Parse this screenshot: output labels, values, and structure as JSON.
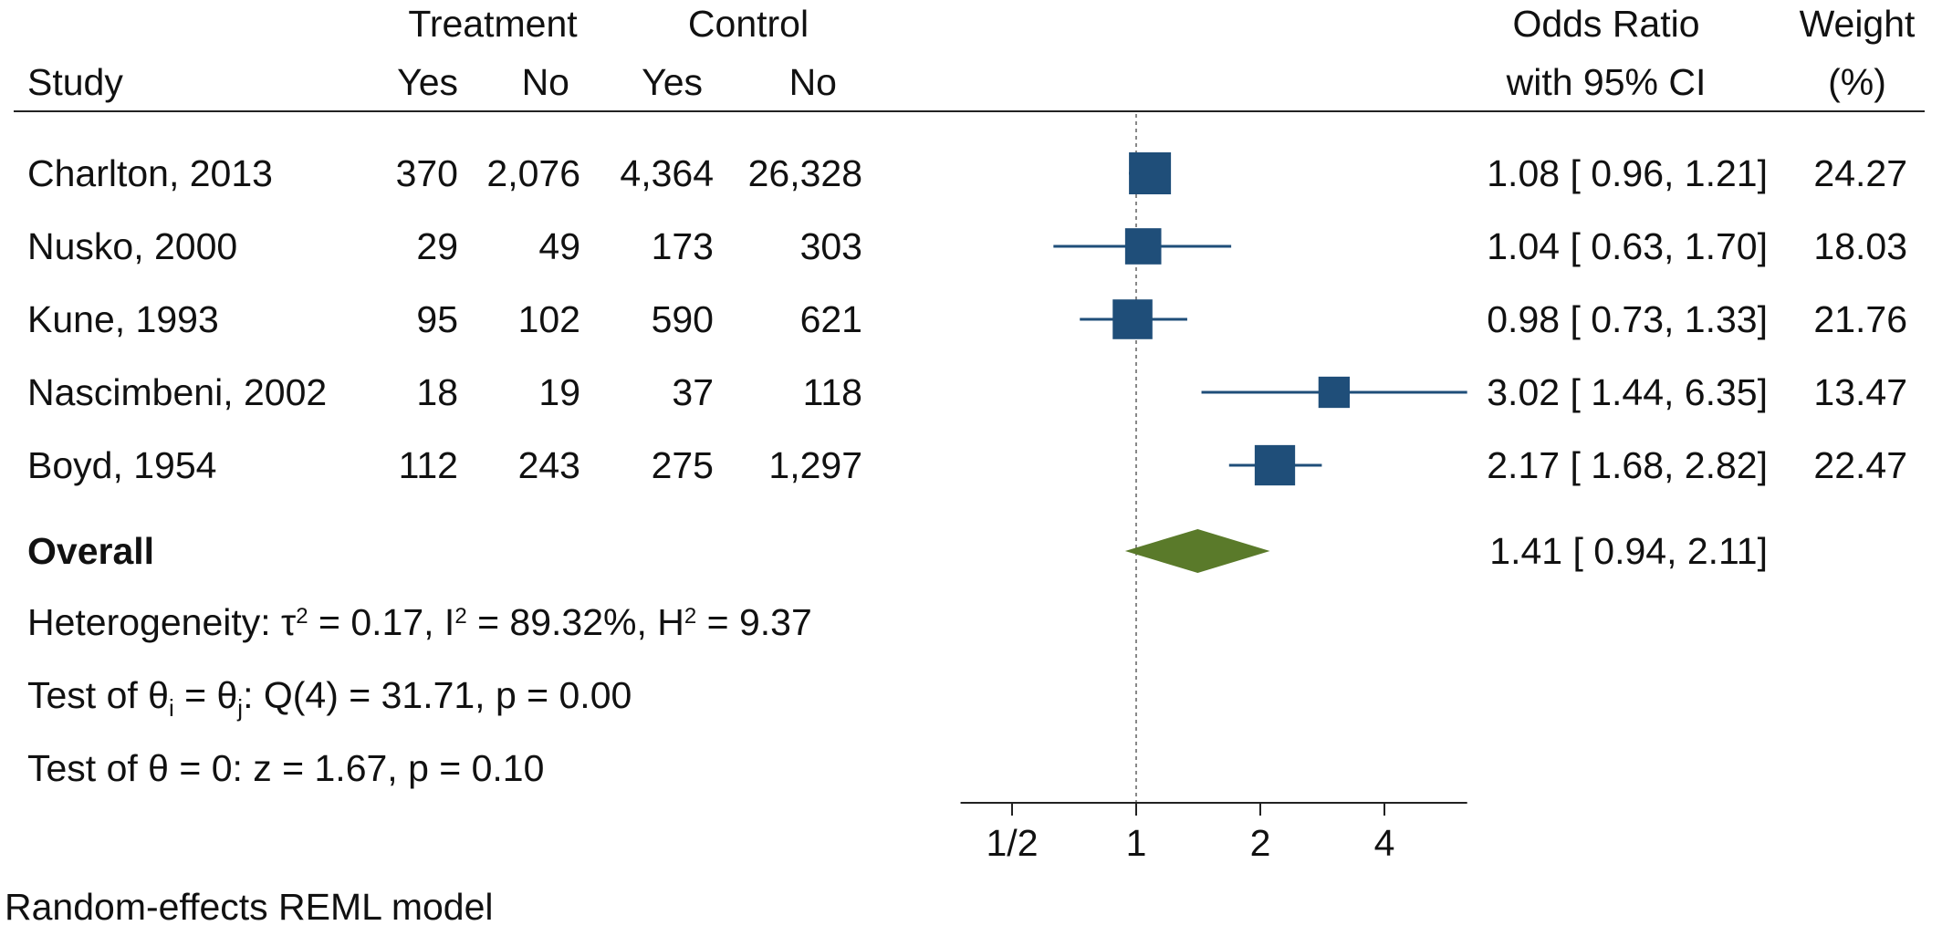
{
  "header": {
    "treatment": "Treatment",
    "control": "Control",
    "study": "Study",
    "yes": "Yes",
    "no": "No",
    "or_line1": "Odds Ratio",
    "or_line2": "with 95% CI",
    "weight_line1": "Weight",
    "weight_line2": "(%)"
  },
  "rows": [
    {
      "study": "Charlton, 2013",
      "t_yes": "370",
      "t_no": "2,076",
      "c_yes": "4,364",
      "c_no": "26,328",
      "ci": "1.08 [ 0.96,  1.21]",
      "weight": "24.27"
    },
    {
      "study": "Nusko, 2000",
      "t_yes": "29",
      "t_no": "49",
      "c_yes": "173",
      "c_no": "303",
      "ci": "1.04 [ 0.63,  1.70]",
      "weight": "18.03"
    },
    {
      "study": "Kune, 1993",
      "t_yes": "95",
      "t_no": "102",
      "c_yes": "590",
      "c_no": "621",
      "ci": "0.98 [ 0.73,  1.33]",
      "weight": "21.76"
    },
    {
      "study": "Nascimbeni, 2002",
      "t_yes": "18",
      "t_no": "19",
      "c_yes": "37",
      "c_no": "118",
      "ci": "3.02 [ 1.44,  6.35]",
      "weight": "13.47"
    },
    {
      "study": "Boyd, 1954",
      "t_yes": "112",
      "t_no": "243",
      "c_yes": "275",
      "c_no": "1,297",
      "ci": "2.17 [ 1.68,  2.82]",
      "weight": "22.47"
    }
  ],
  "overall": {
    "label": "Overall",
    "ci": "1.41 [ 0.94,  2.11]"
  },
  "stats": {
    "het_prefix": "Heterogeneity: τ",
    "het_tau_sup": "2",
    "het_mid1": " = 0.17, I",
    "het_i_sup": "2",
    "het_mid2": " = 89.32%, H",
    "het_h_sup": "2",
    "het_end": " = 9.37",
    "test1_a": "Test of θ",
    "test1_sub_i": "i",
    "test1_b": " = θ",
    "test1_sub_j": "j",
    "test1_c": ": Q(4) = 31.71, p = 0.00",
    "test2": "Test of θ = 0: z = 1.67, p = 0.10"
  },
  "footnote": "Random-effects REML model",
  "colors": {
    "marker": "#1f4e79",
    "diamond": "#5a7a2a",
    "refline": "#888888"
  },
  "chart_data": {
    "type": "forest",
    "x_scale": "log2",
    "xlim": [
      0.375,
      6.35
    ],
    "tick_values": [
      0.5,
      1,
      2,
      4
    ],
    "tick_labels": [
      "1/2",
      "1",
      "2",
      "4"
    ],
    "reference_line": 1,
    "studies": [
      {
        "study": "Charlton, 2013",
        "or": 1.08,
        "lo": 0.96,
        "hi": 1.21,
        "weight": 24.27
      },
      {
        "study": "Nusko, 2000",
        "or": 1.04,
        "lo": 0.63,
        "hi": 1.7,
        "weight": 18.03
      },
      {
        "study": "Kune, 1993",
        "or": 0.98,
        "lo": 0.73,
        "hi": 1.33,
        "weight": 21.76
      },
      {
        "study": "Nascimbeni, 2002",
        "or": 3.02,
        "lo": 1.44,
        "hi": 6.35,
        "weight": 13.47
      },
      {
        "study": "Boyd, 1954",
        "or": 2.17,
        "lo": 1.68,
        "hi": 2.82,
        "weight": 22.47
      }
    ],
    "overall": {
      "or": 1.41,
      "lo": 0.94,
      "hi": 2.11
    }
  }
}
